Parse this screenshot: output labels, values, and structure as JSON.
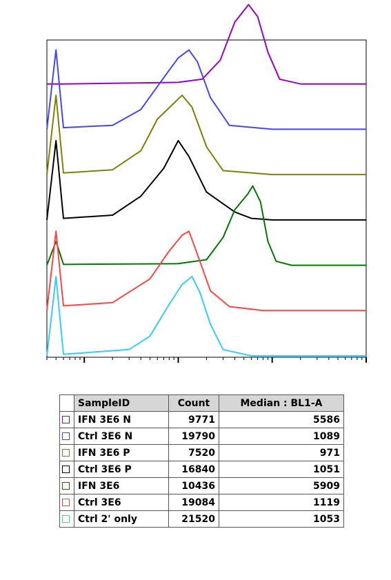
{
  "chart_data": {
    "type": "area",
    "title": "",
    "xlabel": "",
    "ylabel": "",
    "x_scale": "log",
    "x_decade_ticks": [
      100,
      1000,
      10000
    ],
    "series": [
      {
        "name": "IFN 3E6 N",
        "color": "#9900cc",
        "count": 9771,
        "median": 5586,
        "points": [
          [
            60,
            0
          ],
          [
            1000,
            0.02
          ],
          [
            1800,
            0.06
          ],
          [
            2800,
            0.3
          ],
          [
            4000,
            0.78
          ],
          [
            5600,
            1.0
          ],
          [
            7000,
            0.85
          ],
          [
            9000,
            0.4
          ],
          [
            12000,
            0.06
          ],
          [
            20000,
            0
          ],
          [
            80000,
            0
          ]
        ]
      },
      {
        "name": "Ctrl 3E6 N",
        "color": "#4444ff",
        "count": 19790,
        "median": 1089,
        "points": [
          [
            50,
            1.0
          ],
          [
            60,
            0.02
          ],
          [
            200,
            0.05
          ],
          [
            400,
            0.25
          ],
          [
            700,
            0.65
          ],
          [
            1000,
            0.9
          ],
          [
            1300,
            1.0
          ],
          [
            1600,
            0.85
          ],
          [
            2200,
            0.4
          ],
          [
            3500,
            0.05
          ],
          [
            10000,
            0
          ],
          [
            80000,
            0
          ]
        ]
      },
      {
        "name": "IFN 3E6 P",
        "color": "#808000",
        "count": 7520,
        "median": 971,
        "points": [
          [
            50,
            1.0
          ],
          [
            60,
            0.02
          ],
          [
            200,
            0.06
          ],
          [
            400,
            0.3
          ],
          [
            600,
            0.7
          ],
          [
            900,
            0.9
          ],
          [
            1100,
            1.0
          ],
          [
            1400,
            0.85
          ],
          [
            2000,
            0.35
          ],
          [
            3000,
            0.05
          ],
          [
            10000,
            0
          ],
          [
            80000,
            0
          ]
        ]
      },
      {
        "name": "Ctrl 3E6 P",
        "color": "#000000",
        "count": 16840,
        "median": 1051,
        "points": [
          [
            50,
            1.0
          ],
          [
            60,
            0.02
          ],
          [
            200,
            0.06
          ],
          [
            400,
            0.3
          ],
          [
            700,
            0.65
          ],
          [
            1000,
            1.0
          ],
          [
            1300,
            0.8
          ],
          [
            2000,
            0.35
          ],
          [
            4000,
            0.1
          ],
          [
            6000,
            0.02
          ],
          [
            10000,
            0
          ],
          [
            80000,
            0
          ]
        ]
      },
      {
        "name": "IFN 3E6",
        "color": "#007700",
        "count": 10436,
        "median": 5909,
        "points": [
          [
            50,
            0.3
          ],
          [
            60,
            0.01
          ],
          [
            1000,
            0.02
          ],
          [
            2000,
            0.07
          ],
          [
            3000,
            0.35
          ],
          [
            4000,
            0.7
          ],
          [
            5500,
            0.9
          ],
          [
            6200,
            1.0
          ],
          [
            7500,
            0.8
          ],
          [
            9000,
            0.3
          ],
          [
            11000,
            0.05
          ],
          [
            16000,
            0
          ],
          [
            80000,
            0
          ]
        ]
      },
      {
        "name": "Ctrl 3E6",
        "color": "#ff4444",
        "count": 19084,
        "median": 1119,
        "points": [
          [
            50,
            1.0
          ],
          [
            60,
            0.06
          ],
          [
            200,
            0.1
          ],
          [
            500,
            0.4
          ],
          [
            800,
            0.75
          ],
          [
            1100,
            0.95
          ],
          [
            1300,
            1.0
          ],
          [
            1500,
            0.8
          ],
          [
            2200,
            0.25
          ],
          [
            3500,
            0.05
          ],
          [
            8000,
            0
          ],
          [
            80000,
            0
          ]
        ]
      },
      {
        "name": "Ctrl 2' only",
        "color": "#33ccff",
        "count": 21520,
        "median": 1053,
        "points": [
          [
            50,
            1.0
          ],
          [
            60,
            0.02
          ],
          [
            300,
            0.08
          ],
          [
            500,
            0.25
          ],
          [
            800,
            0.65
          ],
          [
            1100,
            0.9
          ],
          [
            1400,
            1.0
          ],
          [
            1700,
            0.8
          ],
          [
            2200,
            0.4
          ],
          [
            3000,
            0.08
          ],
          [
            6000,
            0
          ],
          [
            80000,
            0
          ]
        ]
      }
    ]
  },
  "table": {
    "headers": {
      "sample_id": "SampleID",
      "count": "Count",
      "median": "Median : BL1-A"
    },
    "rows": [
      {
        "id": "IFN 3E6 N",
        "count": "9771",
        "median": "5586",
        "color": "#9900cc"
      },
      {
        "id": "Ctrl 3E6 N",
        "count": "19790",
        "median": "1089",
        "color": "#4444ff"
      },
      {
        "id": "IFN 3E6 P",
        "count": "7520",
        "median": "971",
        "color": "#808000"
      },
      {
        "id": "Ctrl 3E6 P",
        "count": "16840",
        "median": "1051",
        "color": "#000000"
      },
      {
        "id": "IFN 3E6",
        "count": "10436",
        "median": "5909",
        "color": "#007700"
      },
      {
        "id": "Ctrl 3E6",
        "count": "19084",
        "median": "1119",
        "color": "#ff4444"
      },
      {
        "id": "Ctrl 2' only",
        "count": "21520",
        "median": "1053",
        "color": "#33ccff"
      }
    ]
  }
}
